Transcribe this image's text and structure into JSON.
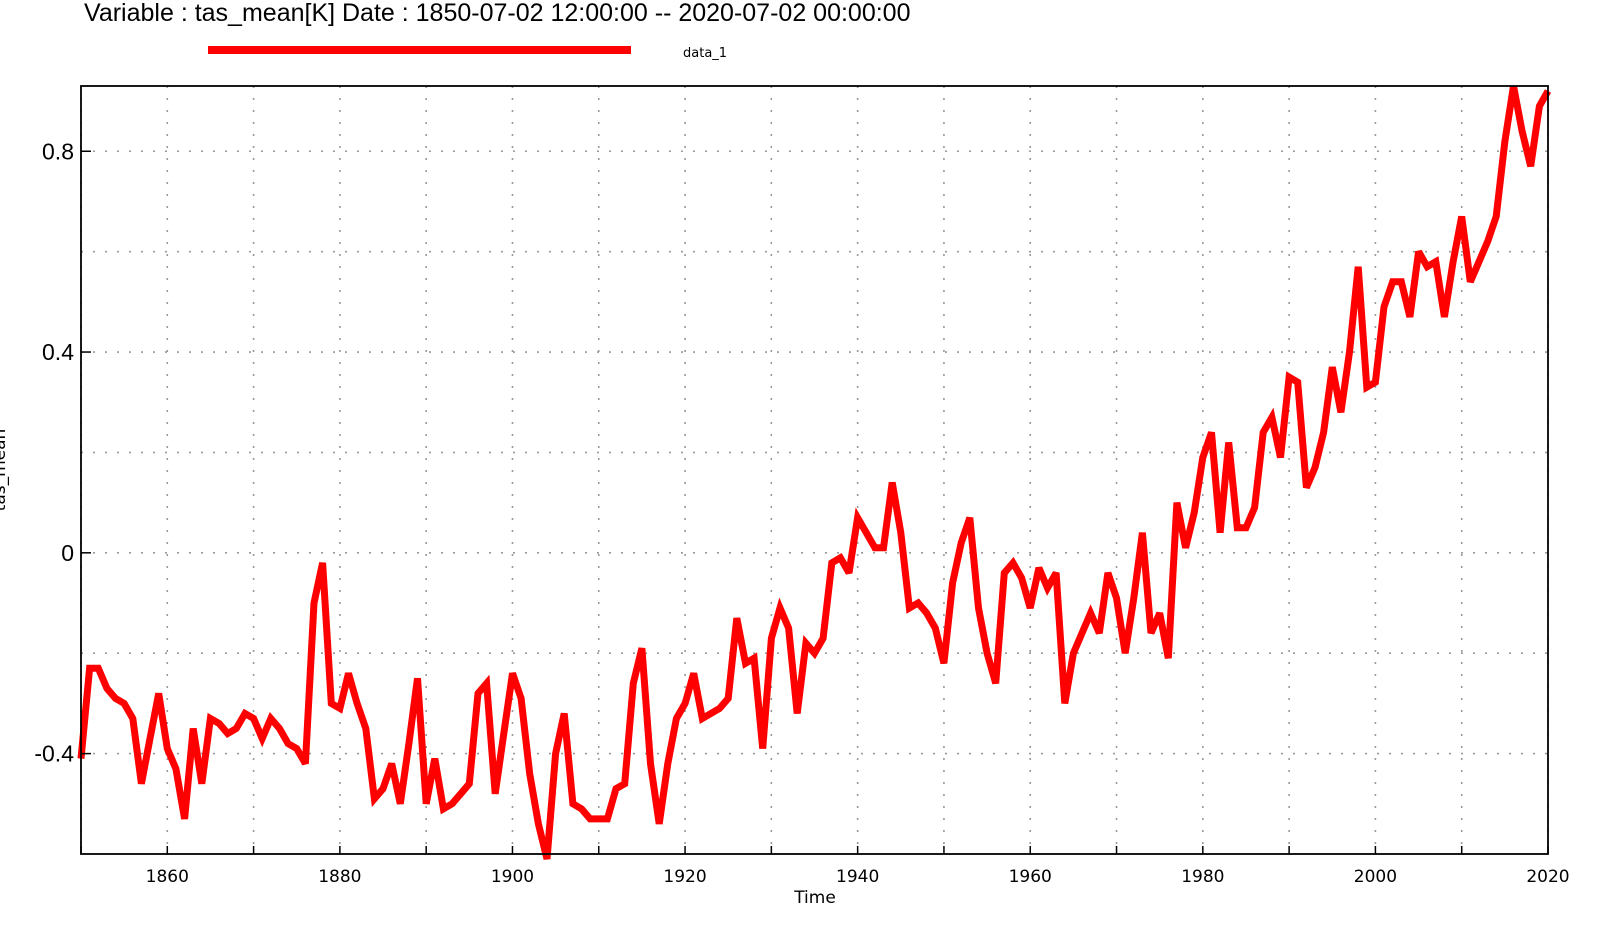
{
  "chart_data": {
    "type": "line",
    "title": "Variable : tas_mean[K]  Date :  1850-07-02 12:00:00 -- 2020-07-02 00:00:00",
    "xlabel": "Time",
    "ylabel": "tas_mean",
    "xlim": [
      1850,
      2020
    ],
    "ylim": [
      -0.6,
      0.93
    ],
    "xticks": [
      1860,
      1880,
      1900,
      1920,
      1940,
      1960,
      1980,
      2000,
      2020
    ],
    "xminor_ticks": [
      1850,
      1870,
      1890,
      1910,
      1930,
      1950,
      1970,
      1990,
      2010
    ],
    "yticks_labeled": [
      -0.4,
      0,
      0.4,
      0.8
    ],
    "yticks_labels": [
      "-0.4",
      "0",
      "0.4",
      "0.8"
    ],
    "ygrid": [
      -0.4,
      -0.2,
      0,
      0.2,
      0.4,
      0.6,
      0.8
    ],
    "xgrid": [
      1850,
      1860,
      1870,
      1880,
      1890,
      1900,
      1910,
      1920,
      1930,
      1940,
      1950,
      1960,
      1970,
      1980,
      1990,
      2000,
      2010,
      2020
    ],
    "grid": true,
    "legend_position": "top",
    "colors": {
      "series": "#ff0000",
      "grid": "#999999",
      "axis": "#000000"
    },
    "series": [
      {
        "name": "data_1",
        "x": [
          1850,
          1851,
          1852,
          1853,
          1854,
          1855,
          1856,
          1857,
          1858,
          1859,
          1860,
          1861,
          1862,
          1863,
          1864,
          1865,
          1866,
          1867,
          1868,
          1869,
          1870,
          1871,
          1872,
          1873,
          1874,
          1875,
          1876,
          1877,
          1878,
          1879,
          1880,
          1881,
          1882,
          1883,
          1884,
          1885,
          1886,
          1887,
          1888,
          1889,
          1890,
          1891,
          1892,
          1893,
          1894,
          1895,
          1896,
          1897,
          1898,
          1899,
          1900,
          1901,
          1902,
          1903,
          1904,
          1905,
          1906,
          1907,
          1908,
          1909,
          1910,
          1911,
          1912,
          1913,
          1914,
          1915,
          1916,
          1917,
          1918,
          1919,
          1920,
          1921,
          1922,
          1923,
          1924,
          1925,
          1926,
          1927,
          1928,
          1929,
          1930,
          1931,
          1932,
          1933,
          1934,
          1935,
          1936,
          1937,
          1938,
          1939,
          1940,
          1941,
          1942,
          1943,
          1944,
          1945,
          1946,
          1947,
          1948,
          1949,
          1950,
          1951,
          1952,
          1953,
          1954,
          1955,
          1956,
          1957,
          1958,
          1959,
          1960,
          1961,
          1962,
          1963,
          1964,
          1965,
          1966,
          1967,
          1968,
          1969,
          1970,
          1971,
          1972,
          1973,
          1974,
          1975,
          1976,
          1977,
          1978,
          1979,
          1980,
          1981,
          1982,
          1983,
          1984,
          1985,
          1986,
          1987,
          1988,
          1989,
          1990,
          1991,
          1992,
          1993,
          1994,
          1995,
          1996,
          1997,
          1998,
          1999,
          2000,
          2001,
          2002,
          2003,
          2004,
          2005,
          2006,
          2007,
          2008,
          2009,
          2010,
          2011,
          2012,
          2013,
          2014,
          2015,
          2016,
          2017,
          2018,
          2019,
          2020
        ],
        "values": [
          -0.41,
          -0.23,
          -0.23,
          -0.27,
          -0.29,
          -0.3,
          -0.33,
          -0.46,
          -0.37,
          -0.28,
          -0.39,
          -0.43,
          -0.53,
          -0.35,
          -0.46,
          -0.33,
          -0.34,
          -0.36,
          -0.35,
          -0.32,
          -0.33,
          -0.37,
          -0.33,
          -0.35,
          -0.38,
          -0.39,
          -0.42,
          -0.1,
          -0.02,
          -0.3,
          -0.31,
          -0.24,
          -0.3,
          -0.35,
          -0.49,
          -0.47,
          -0.42,
          -0.5,
          -0.38,
          -0.25,
          -0.5,
          -0.41,
          -0.51,
          -0.5,
          -0.48,
          -0.46,
          -0.28,
          -0.26,
          -0.48,
          -0.36,
          -0.24,
          -0.29,
          -0.44,
          -0.54,
          -0.61,
          -0.4,
          -0.32,
          -0.5,
          -0.51,
          -0.53,
          -0.53,
          -0.53,
          -0.47,
          -0.46,
          -0.26,
          -0.19,
          -0.42,
          -0.54,
          -0.42,
          -0.33,
          -0.3,
          -0.24,
          -0.33,
          -0.32,
          -0.31,
          -0.29,
          -0.13,
          -0.22,
          -0.21,
          -0.39,
          -0.17,
          -0.11,
          -0.15,
          -0.32,
          -0.18,
          -0.2,
          -0.17,
          -0.02,
          -0.01,
          -0.04,
          0.07,
          0.04,
          0.01,
          0.01,
          0.14,
          0.04,
          -0.11,
          -0.1,
          -0.12,
          -0.15,
          -0.22,
          -0.06,
          0.02,
          0.07,
          -0.11,
          -0.2,
          -0.26,
          -0.04,
          -0.02,
          -0.05,
          -0.11,
          -0.03,
          -0.07,
          -0.04,
          -0.3,
          -0.2,
          -0.16,
          -0.12,
          -0.16,
          -0.04,
          -0.09,
          -0.2,
          -0.09,
          0.04,
          -0.16,
          -0.12,
          -0.21,
          0.1,
          0.01,
          0.08,
          0.19,
          0.24,
          0.04,
          0.22,
          0.05,
          0.05,
          0.09,
          0.24,
          0.27,
          0.19,
          0.35,
          0.34,
          0.13,
          0.17,
          0.24,
          0.37,
          0.28,
          0.4,
          0.57,
          0.33,
          0.34,
          0.49,
          0.54,
          0.54,
          0.47,
          0.6,
          0.57,
          0.58,
          0.47,
          0.58,
          0.67,
          0.54,
          0.58,
          0.62,
          0.67,
          0.82,
          0.93,
          0.84,
          0.77,
          0.89,
          0.92
        ]
      }
    ]
  }
}
